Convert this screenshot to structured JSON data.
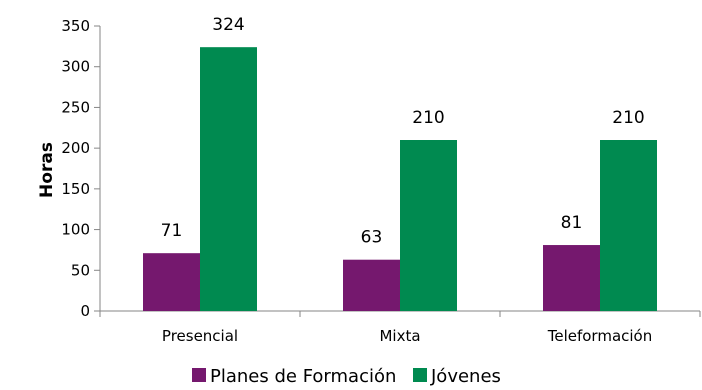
{
  "chart_data": {
    "type": "bar",
    "categories": [
      "Presencial",
      "Mixta",
      "Teleformación"
    ],
    "series": [
      {
        "name": "Planes de Formación",
        "values": [
          71,
          63,
          81
        ],
        "color": "#75186E"
      },
      {
        "name": "Jóvenes",
        "values": [
          324,
          210,
          210
        ],
        "color": "#008A50"
      }
    ],
    "ylabel": "Horas",
    "ylim": [
      0,
      350
    ],
    "yticks": [
      "0",
      "50",
      "100",
      "150",
      "200",
      "250",
      "300",
      "350"
    ],
    "grid": false,
    "legend_position": "bottom"
  }
}
